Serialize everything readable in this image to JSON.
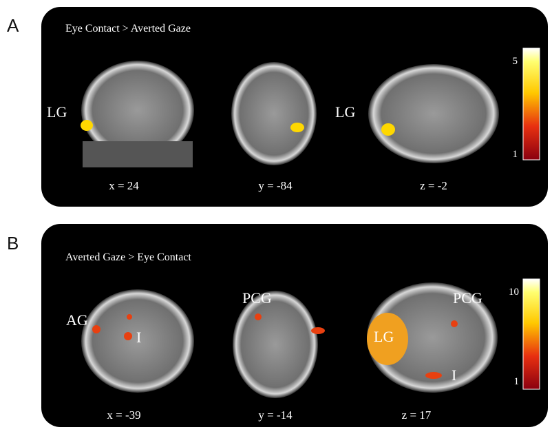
{
  "panels": [
    {
      "letter": "A",
      "title": "Eye Contact > Averted Gaze",
      "views": [
        {
          "coord": "x = 24",
          "labels": [
            "LG"
          ]
        },
        {
          "coord": "y = -84",
          "labels": []
        },
        {
          "coord": "z = -2",
          "labels": [
            "LG"
          ]
        }
      ],
      "colorbar": {
        "max": "5",
        "min": "1"
      }
    },
    {
      "letter": "B",
      "title": "Averted Gaze > Eye Contact",
      "views": [
        {
          "coord": "x = -39",
          "labels": [
            "AG",
            "I"
          ]
        },
        {
          "coord": "y = -14",
          "labels": [
            "PCG"
          ]
        },
        {
          "coord": "z = 17",
          "labels": [
            "PCG",
            "LG",
            "I"
          ]
        }
      ],
      "colorbar": {
        "max": "10",
        "min": "1"
      }
    }
  ]
}
